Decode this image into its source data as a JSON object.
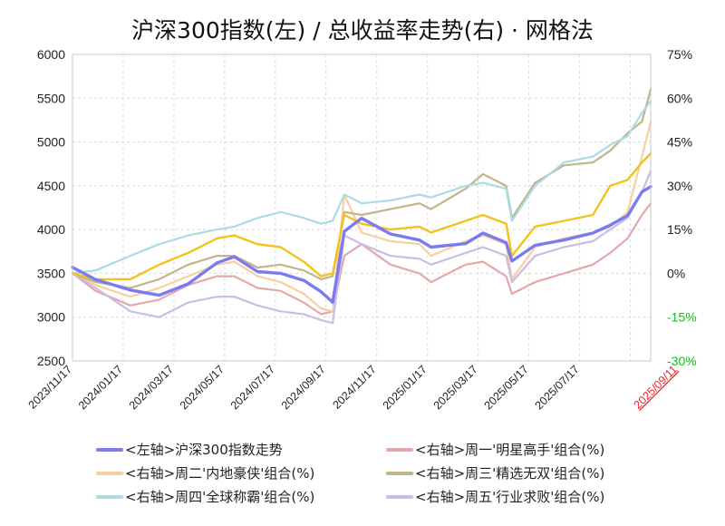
{
  "chart_data": {
    "type": "line",
    "title": "沪深300指数(左)  /  总收益率走势(右) · 网格法",
    "x_ticks": [
      "2023/11/17",
      "2024/01/17",
      "2024/03/17",
      "2024/05/17",
      "2024/07/17",
      "2024/09/17",
      "2024/11/17",
      "2025/01/17",
      "2025/03/17",
      "2025/05/17",
      "2025/07/17",
      "2025/09/11"
    ],
    "x_last_tick_color": "#e8262a",
    "y_left": {
      "min": 2500,
      "max": 6000,
      "step": 500,
      "ticks": [
        "6000",
        "5500",
        "5000",
        "4500",
        "4000",
        "3500",
        "3000",
        "2500"
      ]
    },
    "y_right": {
      "min": -30,
      "max": 75,
      "unit": "%",
      "ticks": [
        {
          "value": 75,
          "label": "75%",
          "color": "#222222"
        },
        {
          "value": 60,
          "label": "60%",
          "color": "#222222"
        },
        {
          "value": 45,
          "label": "45%",
          "color": "#222222"
        },
        {
          "value": 30,
          "label": "30%",
          "color": "#222222"
        },
        {
          "value": 15,
          "label": "15%",
          "color": "#222222"
        },
        {
          "value": 0,
          "label": "0%",
          "color": "#222222"
        },
        {
          "value": -15,
          "label": "-15%",
          "color": "#12c312"
        },
        {
          "value": -30,
          "label": "-30%",
          "color": "#12c312"
        }
      ]
    },
    "grid": true,
    "legend_position": "bottom",
    "series": [
      {
        "name": "<左轴>沪深300指数走势",
        "axis": "left",
        "color": "#7b7bf0",
        "width": 3.4,
        "x": [
          0,
          0.04,
          0.1,
          0.15,
          0.2,
          0.25,
          0.28,
          0.32,
          0.36,
          0.4,
          0.43,
          0.45,
          0.47,
          0.5,
          0.55,
          0.6,
          0.62,
          0.68,
          0.71,
          0.75,
          0.76,
          0.8,
          0.85,
          0.9,
          0.93,
          0.96,
          0.985,
          1.0
        ],
        "values": [
          3570,
          3430,
          3310,
          3250,
          3380,
          3620,
          3690,
          3520,
          3500,
          3420,
          3290,
          3170,
          3980,
          4130,
          3950,
          3880,
          3800,
          3840,
          3960,
          3850,
          3640,
          3820,
          3880,
          3960,
          4050,
          4160,
          4430,
          4490
        ]
      },
      {
        "name": "<右轴>周一'明星高手'组合(%)",
        "axis": "right",
        "color": "#e3a9a9",
        "width": 2.2,
        "x": [
          0,
          0.04,
          0.1,
          0.15,
          0.2,
          0.25,
          0.28,
          0.32,
          0.36,
          0.4,
          0.43,
          0.45,
          0.47,
          0.5,
          0.55,
          0.6,
          0.62,
          0.68,
          0.71,
          0.75,
          0.76,
          0.8,
          0.85,
          0.9,
          0.93,
          0.96,
          0.985,
          1.0
        ],
        "values": [
          0,
          -6,
          -11,
          -9,
          -4,
          -1,
          -1,
          -5,
          -6,
          -10,
          -14,
          -13,
          6,
          10,
          3,
          0,
          -3,
          3,
          4,
          -1,
          -7,
          -3,
          0,
          3,
          7,
          12,
          20,
          24
        ]
      },
      {
        "name": "<右轴>周二'内地豪侠'组合(%)",
        "axis": "right",
        "color": "#f8cfa0",
        "width": 2.2,
        "x": [
          0,
          0.04,
          0.1,
          0.15,
          0.2,
          0.25,
          0.28,
          0.32,
          0.36,
          0.4,
          0.43,
          0.45,
          0.47,
          0.5,
          0.55,
          0.6,
          0.62,
          0.68,
          0.71,
          0.75,
          0.76,
          0.8,
          0.85,
          0.9,
          0.93,
          0.96,
          0.985,
          1.0
        ],
        "values": [
          0,
          -4,
          -8,
          -5,
          -1,
          3,
          4,
          -1,
          -3,
          -7,
          -12,
          -13,
          27,
          14,
          11,
          10,
          6,
          11,
          13,
          10,
          -2,
          9,
          12,
          14,
          16,
          21,
          40,
          52
        ]
      },
      {
        "name": "<右轴>周三'精选无双'组合(%)",
        "axis": "right",
        "color": "#c2b588",
        "width": 2.2,
        "x": [
          0,
          0.04,
          0.1,
          0.15,
          0.2,
          0.25,
          0.28,
          0.32,
          0.36,
          0.4,
          0.43,
          0.45,
          0.47,
          0.5,
          0.55,
          0.6,
          0.62,
          0.68,
          0.71,
          0.75,
          0.76,
          0.8,
          0.85,
          0.9,
          0.93,
          0.96,
          0.985,
          1.0
        ],
        "values": [
          0,
          -3,
          -5,
          -2,
          3,
          6,
          6,
          2,
          3,
          1,
          -2,
          -1,
          21,
          20,
          22,
          24,
          22,
          29,
          34,
          30,
          19,
          31,
          37,
          38,
          42,
          48,
          52,
          63
        ]
      },
      {
        "name": "<右轴>周四'全球称霸'组合(%)",
        "axis": "right",
        "color": "#a9dce5",
        "width": 2.2,
        "x": [
          0,
          0.04,
          0.1,
          0.15,
          0.2,
          0.25,
          0.28,
          0.32,
          0.36,
          0.4,
          0.43,
          0.45,
          0.47,
          0.5,
          0.55,
          0.6,
          0.62,
          0.68,
          0.71,
          0.75,
          0.76,
          0.8,
          0.85,
          0.9,
          0.93,
          0.96,
          0.985,
          1.0
        ],
        "values": [
          0,
          1,
          6,
          10,
          13,
          15,
          16,
          19,
          21,
          19,
          17,
          18,
          27,
          24,
          25,
          27,
          26,
          30,
          31,
          29,
          18,
          30,
          38,
          40,
          44,
          47,
          55,
          59
        ]
      },
      {
        "name": "<右轴>周五'行业求败'组合(%)",
        "axis": "right",
        "color": "#c8bde3",
        "width": 2.2,
        "x": [
          0,
          0.04,
          0.1,
          0.15,
          0.2,
          0.25,
          0.28,
          0.32,
          0.36,
          0.4,
          0.43,
          0.45,
          0.47,
          0.5,
          0.55,
          0.6,
          0.62,
          0.68,
          0.71,
          0.75,
          0.76,
          0.8,
          0.85,
          0.9,
          0.93,
          0.96,
          0.985,
          1.0
        ],
        "values": [
          0,
          -5,
          -13,
          -15,
          -10,
          -8,
          -8,
          -11,
          -13,
          -14,
          -16,
          -17,
          13,
          10,
          6,
          5,
          3,
          7,
          9,
          6,
          -3,
          6,
          9,
          11,
          15,
          19,
          28,
          35
        ]
      },
      {
        "name": "",
        "axis": "right",
        "color": "#f5c21b",
        "width": 2.4,
        "legend": false,
        "x": [
          0,
          0.04,
          0.1,
          0.15,
          0.2,
          0.25,
          0.28,
          0.32,
          0.36,
          0.4,
          0.43,
          0.45,
          0.47,
          0.5,
          0.55,
          0.6,
          0.62,
          0.68,
          0.71,
          0.75,
          0.76,
          0.8,
          0.85,
          0.9,
          0.93,
          0.96,
          0.985,
          1.0
        ],
        "values": [
          0,
          -2,
          -2,
          3,
          7,
          12,
          13,
          10,
          9,
          4,
          -1,
          0,
          20,
          17,
          15,
          16,
          14,
          18,
          20,
          17,
          6,
          16,
          18,
          20,
          30,
          32,
          38,
          41
        ]
      }
    ]
  }
}
